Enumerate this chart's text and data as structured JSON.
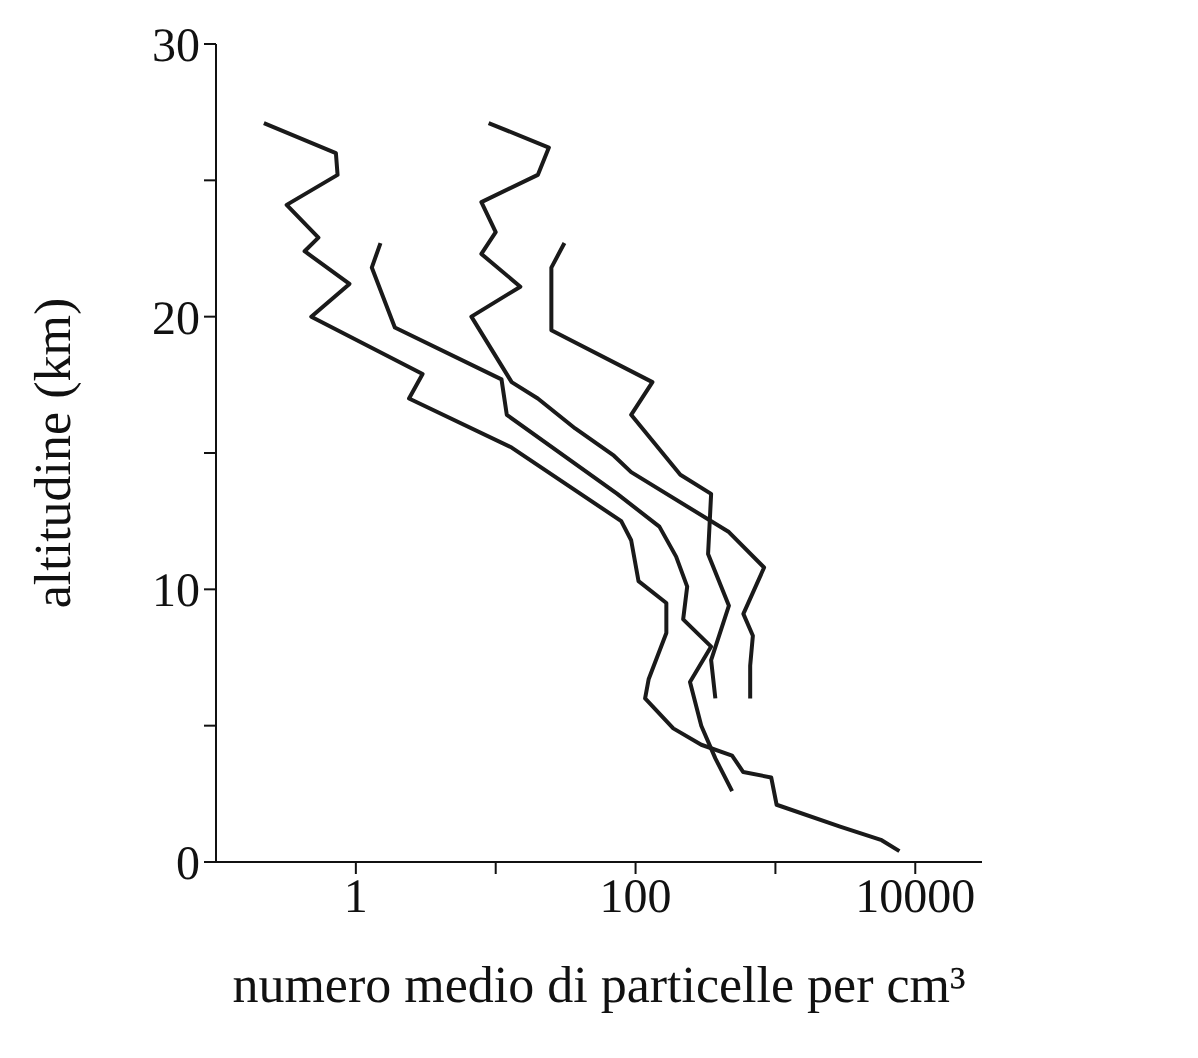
{
  "chart_data": {
    "type": "line",
    "xlabel": "numero medio di particelle per cm³",
    "ylabel": "altitudine (km)",
    "log": "x",
    "xlim": [
      0.1,
      30000
    ],
    "xticks": [
      1,
      {
        "value": 10,
        "label": null
      },
      100,
      {
        "value": 1000,
        "label": null
      },
      10000
    ],
    "ylim": [
      0,
      30
    ],
    "yticks": [
      0,
      {
        "value": 5,
        "label": null
      },
      10,
      {
        "value": 15,
        "label": null
      },
      20,
      {
        "value": 25,
        "label": null
      },
      30
    ],
    "grid": false,
    "legend": false,
    "marker": "none",
    "line_style": "solid",
    "series": [
      {
        "color": "#1a1a1a",
        "x": [
          0.22,
          0.72,
          0.74,
          0.32,
          0.54,
          0.43,
          0.9,
          0.48,
          3.0,
          2.4,
          13,
          79,
          93,
          105,
          166,
          166,
          124,
          117,
          186,
          295,
          490,
          589,
          933,
          1020,
          2900,
          5750,
          7700
        ],
        "values": [
          27.1,
          26.0,
          25.2,
          24.1,
          22.9,
          22.4,
          21.2,
          20.0,
          17.9,
          17.0,
          15.2,
          12.5,
          11.8,
          10.3,
          9.5,
          8.4,
          6.7,
          6.0,
          4.9,
          4.3,
          3.9,
          3.3,
          3.1,
          2.1,
          1.3,
          0.8,
          0.4
        ]
      },
      {
        "color": "#1a1a1a",
        "x": [
          1.5,
          1.3,
          1.9,
          11,
          12,
          74,
          148,
          195,
          234,
          219,
          347,
          245,
          295,
          372,
          490
        ],
        "values": [
          22.7,
          21.8,
          19.6,
          17.7,
          16.4,
          13.5,
          12.3,
          11.2,
          10.1,
          8.9,
          7.9,
          6.6,
          5.0,
          3.8,
          2.6
        ]
      },
      {
        "color": "#1a1a1a",
        "x": [
          8.9,
          24,
          20,
          7.9,
          10,
          7.9,
          15,
          6.7,
          13,
          20,
          37,
          70,
          93,
          465,
          830,
          590,
          690,
          660,
          660
        ],
        "values": [
          27.1,
          26.2,
          25.2,
          24.2,
          23.1,
          22.3,
          21.1,
          20.0,
          17.6,
          17.0,
          15.9,
          14.9,
          14.3,
          12.1,
          10.8,
          9.1,
          8.3,
          7.2,
          6.0
        ]
      },
      {
        "color": "#1a1a1a",
        "x": [
          31,
          25,
          25,
          132,
          93,
          209,
          347,
          330,
          465,
          347,
          372
        ],
        "values": [
          22.7,
          21.8,
          19.5,
          17.6,
          16.4,
          14.2,
          13.5,
          11.3,
          9.4,
          7.4,
          6.0
        ]
      }
    ]
  }
}
